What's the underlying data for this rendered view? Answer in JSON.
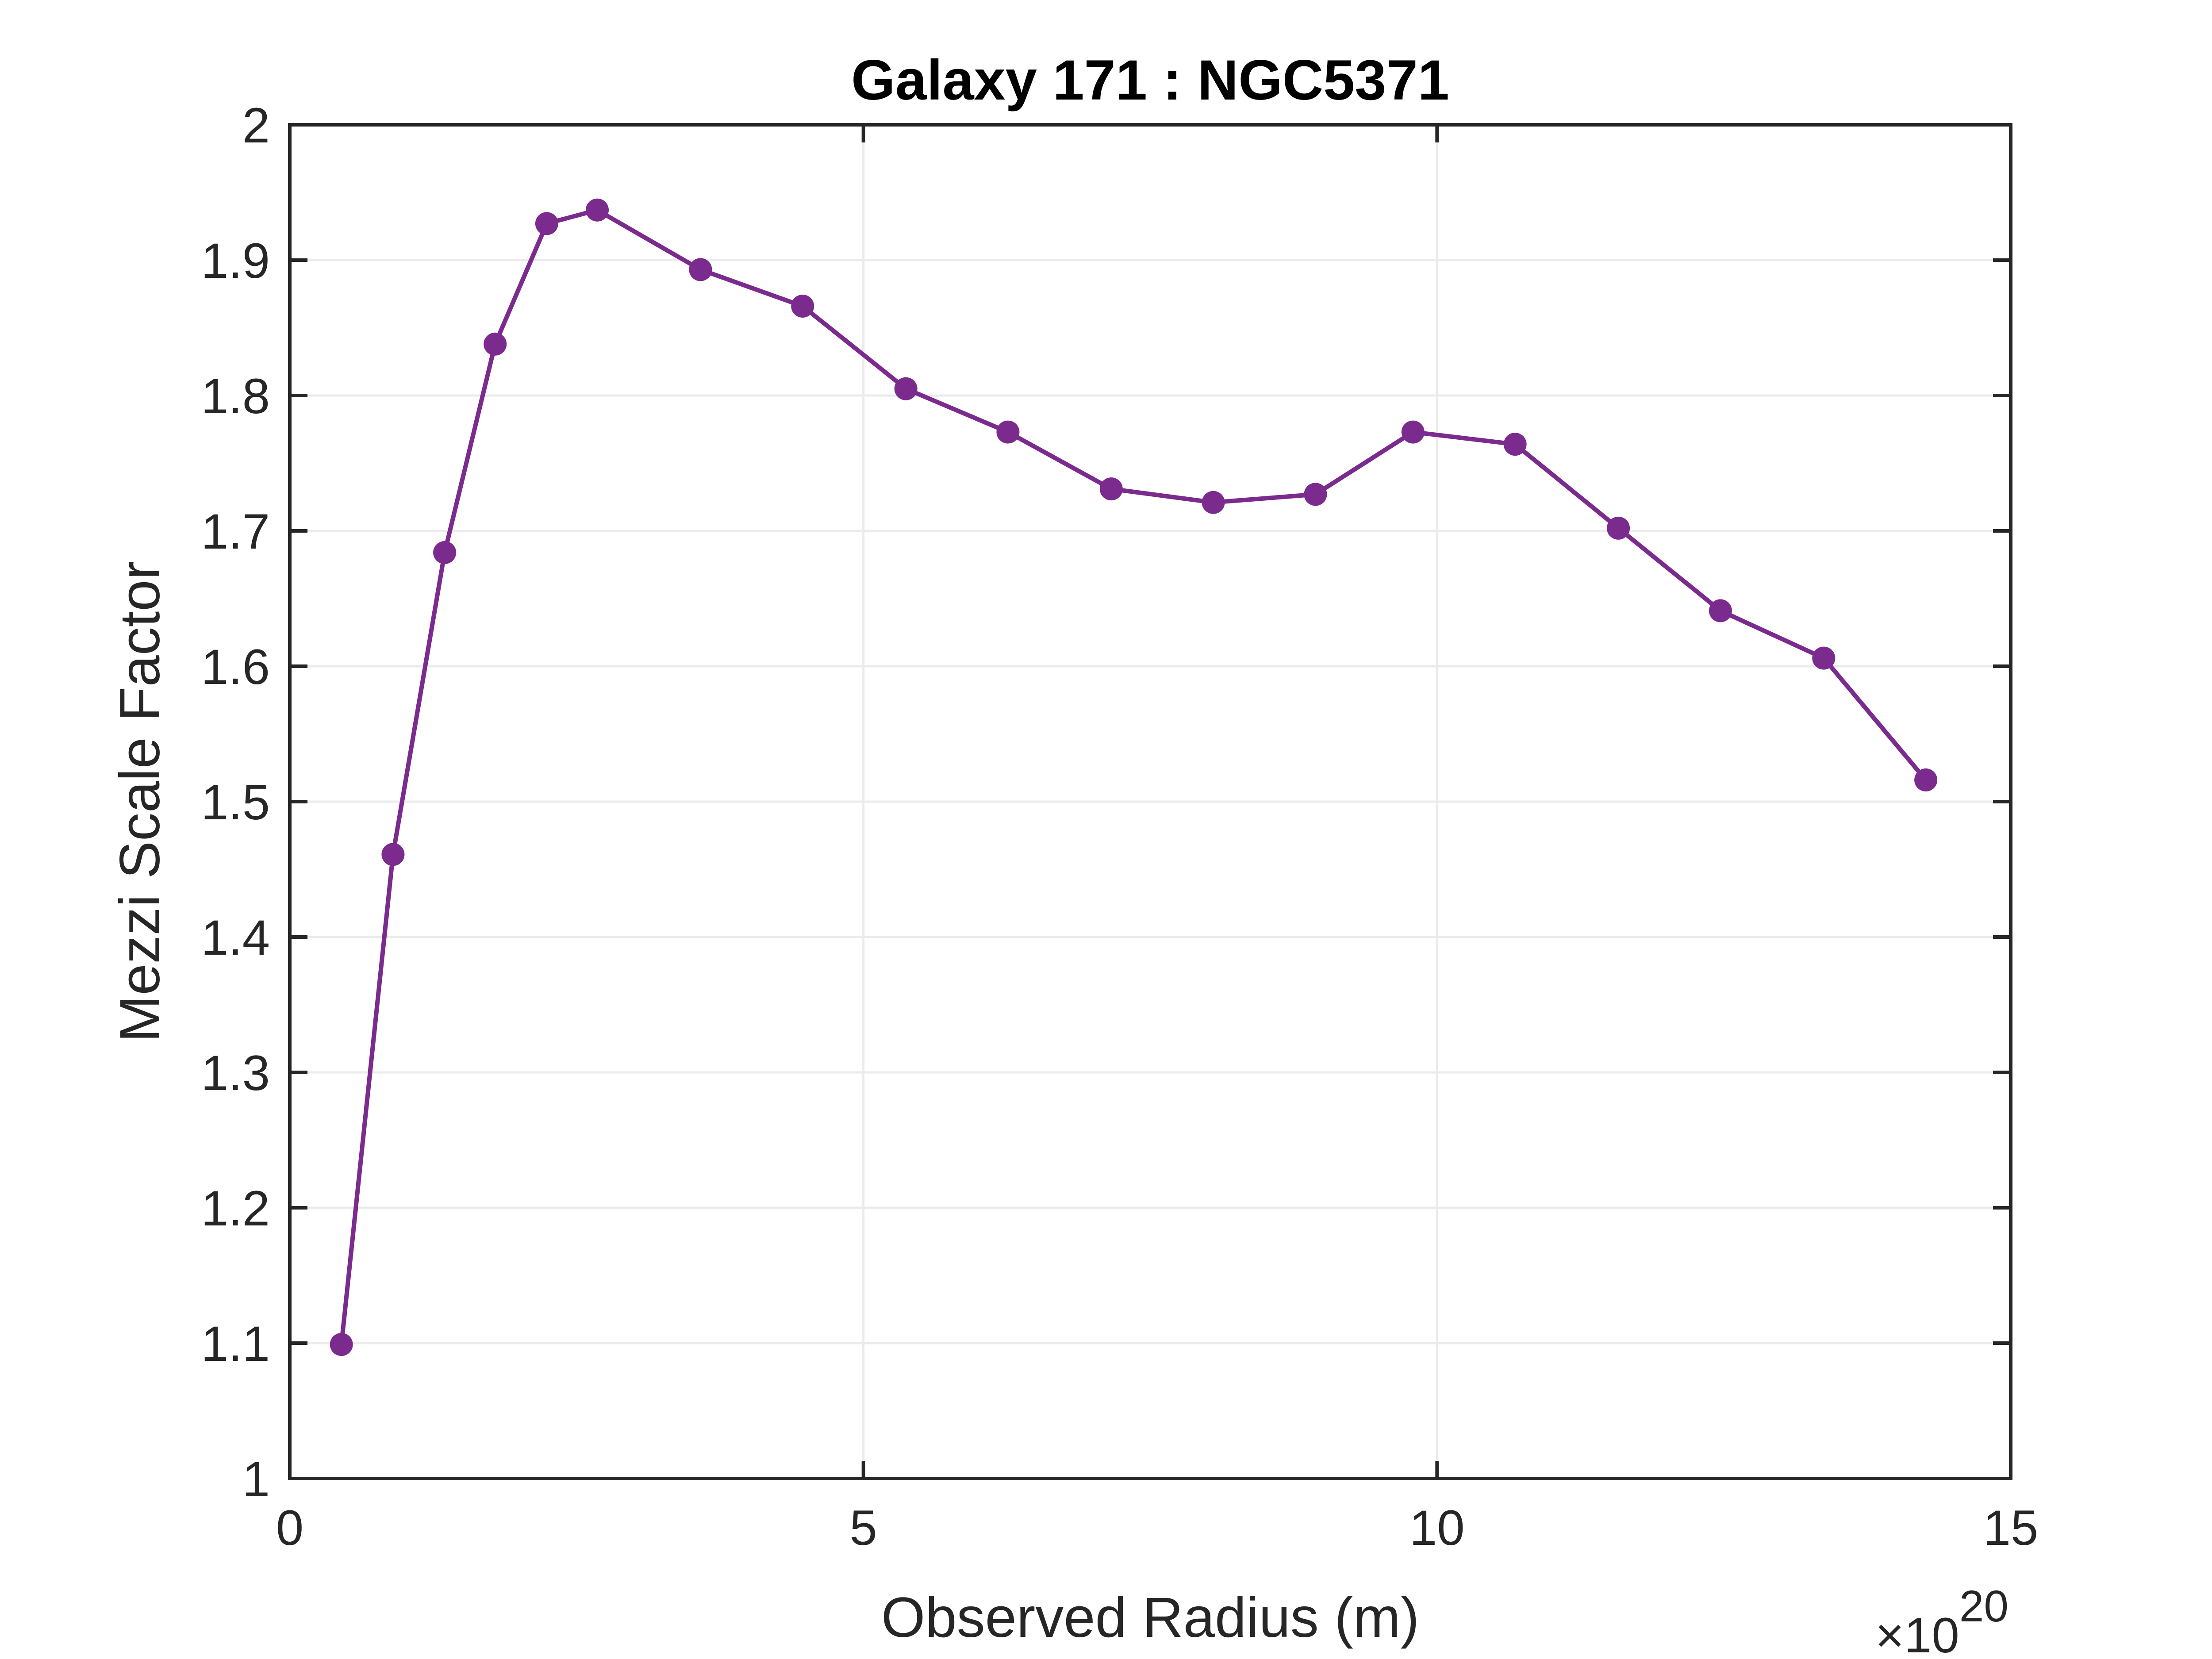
{
  "chart_data": {
    "type": "line",
    "title": "Galaxy 171 : NGC5371",
    "xlabel": "Observed Radius (m)",
    "ylabel": "Mezzi Scale Factor",
    "x_multiplier_label": {
      "base": "×10",
      "exponent": "20"
    },
    "xlim": [
      0,
      15
    ],
    "ylim": [
      1,
      2
    ],
    "xticks": [
      0,
      5,
      10,
      15
    ],
    "xtick_labels": [
      "0",
      "5",
      "10",
      "15"
    ],
    "yticks": [
      1,
      1.1,
      1.2,
      1.3,
      1.4,
      1.5,
      1.6,
      1.7,
      1.8,
      1.9,
      2
    ],
    "ytick_labels": [
      "1",
      "1.1",
      "1.2",
      "1.3",
      "1.4",
      "1.5",
      "1.6",
      "1.7",
      "1.8",
      "1.9",
      "2"
    ],
    "grid": true,
    "color": "#7B2A8E",
    "series": [
      {
        "x": [
          0.45,
          0.9,
          1.35,
          1.79,
          2.24,
          2.68,
          3.58,
          4.47,
          5.37,
          6.26,
          7.16,
          8.05,
          8.94,
          9.79,
          10.68,
          11.58,
          12.47,
          13.37,
          14.26
        ],
        "y": [
          1.099,
          1.461,
          1.684,
          1.838,
          1.927,
          1.937,
          1.893,
          1.866,
          1.805,
          1.773,
          1.731,
          1.721,
          1.727,
          1.773,
          1.764,
          1.702,
          1.641,
          1.606,
          1.516
        ]
      }
    ]
  }
}
